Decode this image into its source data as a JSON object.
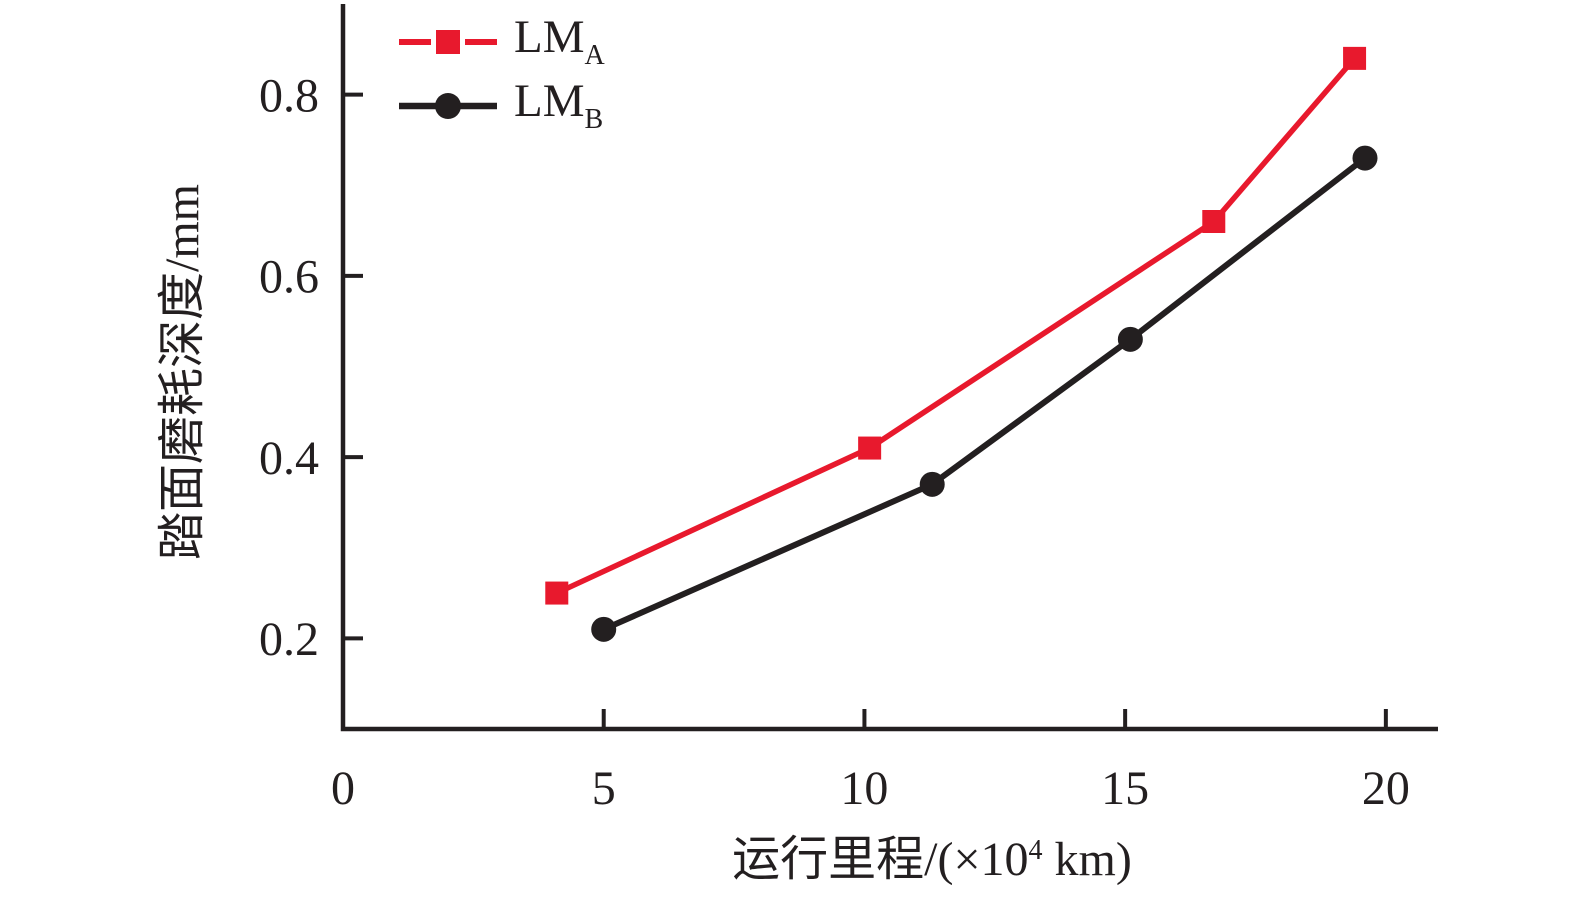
{
  "figure": {
    "background": "#ffffff",
    "text_color": "#231f20"
  },
  "chart_data": {
    "type": "line",
    "title": "",
    "xlabel": "运行里程/(×10⁴ km)",
    "xlabel_parts": {
      "pre": "运行里程/(×10",
      "sup": "4",
      "post": " km)"
    },
    "ylabel": "踏面磨耗深度/mm",
    "xlim": [
      0,
      21
    ],
    "ylim": [
      0.1,
      0.9
    ],
    "x_ticks": [
      0,
      5,
      10,
      15,
      20
    ],
    "x_tick_marks": [
      5,
      10,
      15,
      20
    ],
    "y_ticks": [
      0.2,
      0.4,
      0.6,
      0.8
    ],
    "grid": false,
    "legend_position": "top-left-inside",
    "axis_color": "#231f20",
    "series": [
      {
        "name": "LM",
        "sub": "A",
        "color": "#e8192d",
        "marker": "square",
        "points": [
          [
            4.1,
            0.25
          ],
          [
            10.1,
            0.41
          ],
          [
            16.7,
            0.66
          ],
          [
            19.4,
            0.84
          ]
        ]
      },
      {
        "name": "LM",
        "sub": "B",
        "color": "#231f20",
        "marker": "circle",
        "points": [
          [
            5.0,
            0.21
          ],
          [
            11.3,
            0.37
          ],
          [
            15.1,
            0.53
          ],
          [
            19.6,
            0.73
          ]
        ]
      }
    ]
  }
}
